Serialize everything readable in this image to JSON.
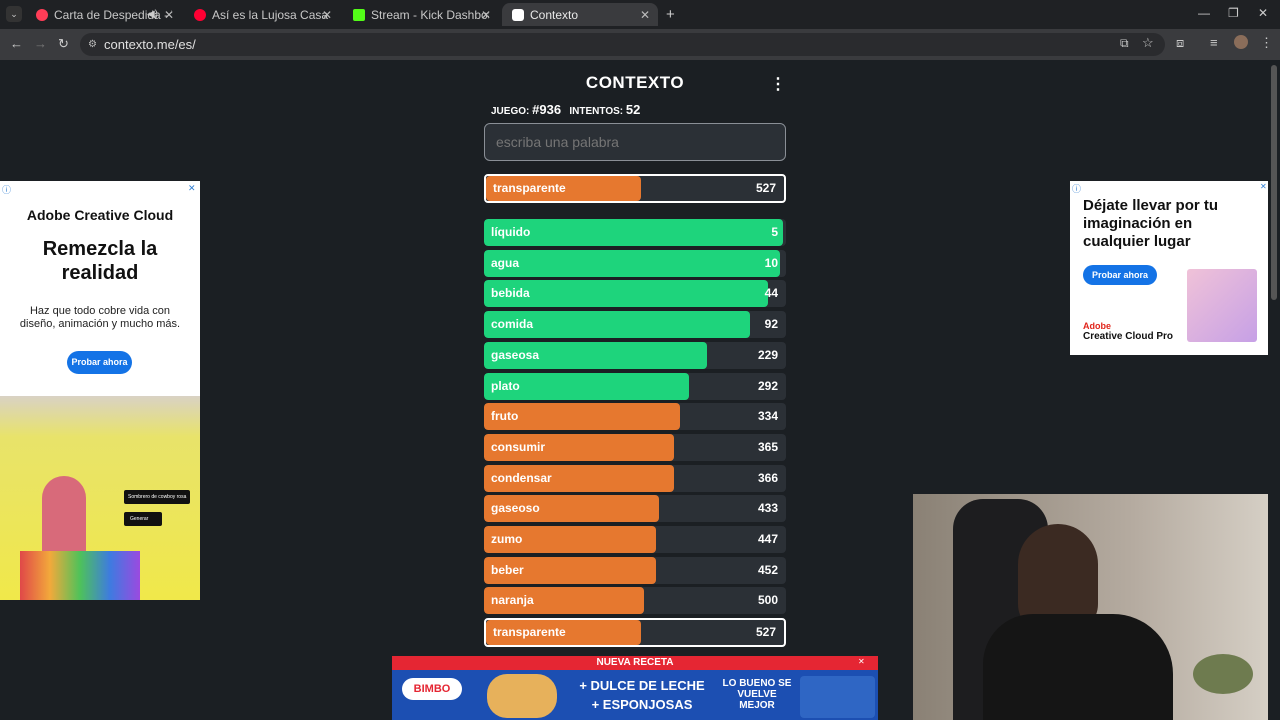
{
  "browser": {
    "tabs": [
      {
        "label": "Carta de Despedida - YouTu",
        "color": "#ff3d57"
      },
      {
        "label": "Así es la Lujosa Casa de JBalvin",
        "color": "#ff0033"
      },
      {
        "label": "Stream - Kick Dashboard",
        "color": "#53fc18"
      },
      {
        "label": "Contexto",
        "color": "#ffffff"
      }
    ],
    "url": "contexto.me/es/"
  },
  "game": {
    "title": "CONTEXTO",
    "game_label": "JUEGO:",
    "game_number": "#936",
    "attempts_label": "INTENTOS:",
    "attempts": "52",
    "input_placeholder": "escriba una palabra",
    "last_guess": {
      "word": "transparente",
      "rank": 527,
      "fill": 0.52,
      "color": "#e6782f"
    },
    "guesses": [
      {
        "word": "líquido",
        "rank": 5,
        "fill": 0.99,
        "color": "#1ed47c"
      },
      {
        "word": "agua",
        "rank": 10,
        "fill": 0.98,
        "color": "#1ed47c"
      },
      {
        "word": "bebida",
        "rank": 44,
        "fill": 0.94,
        "color": "#1ed47c"
      },
      {
        "word": "comida",
        "rank": 92,
        "fill": 0.88,
        "color": "#1ed47c"
      },
      {
        "word": "gaseosa",
        "rank": 229,
        "fill": 0.74,
        "color": "#1ed47c"
      },
      {
        "word": "plato",
        "rank": 292,
        "fill": 0.68,
        "color": "#1ed47c"
      },
      {
        "word": "fruto",
        "rank": 334,
        "fill": 0.65,
        "color": "#e6782f"
      },
      {
        "word": "consumir",
        "rank": 365,
        "fill": 0.63,
        "color": "#e6782f"
      },
      {
        "word": "condensar",
        "rank": 366,
        "fill": 0.63,
        "color": "#e6782f"
      },
      {
        "word": "gaseoso",
        "rank": 433,
        "fill": 0.58,
        "color": "#e6782f"
      },
      {
        "word": "zumo",
        "rank": 447,
        "fill": 0.57,
        "color": "#e6782f"
      },
      {
        "word": "beber",
        "rank": 452,
        "fill": 0.57,
        "color": "#e6782f"
      },
      {
        "word": "naranja",
        "rank": 500,
        "fill": 0.53,
        "color": "#e6782f"
      },
      {
        "word": "transparente",
        "rank": 527,
        "fill": 0.52,
        "color": "#e6782f",
        "highlight": true
      }
    ]
  },
  "ads": {
    "left_brand": "Adobe Creative Cloud",
    "left_headline": "Remezcla la realidad",
    "left_body": "Haz que todo cobre vida con diseño, animación y mucho más.",
    "left_cta": "Probar ahora",
    "left_chip1": "Sombrero de cowboy rosa",
    "left_chip2": "Generar",
    "right_headline": "Déjate llevar por tu imaginación en cualquier lugar",
    "right_cta": "Probar ahora",
    "right_brand1": "Adobe",
    "right_brand2": "Creative Cloud Pro",
    "bottom_top": "NUEVA RECETA",
    "bottom_logo": "BIMBO",
    "bottom_line1": "+ DULCE DE LECHE",
    "bottom_line2": "+ ESPONJOSAS",
    "bottom_right": "LO BUENO SE VUELVE MEJOR"
  }
}
